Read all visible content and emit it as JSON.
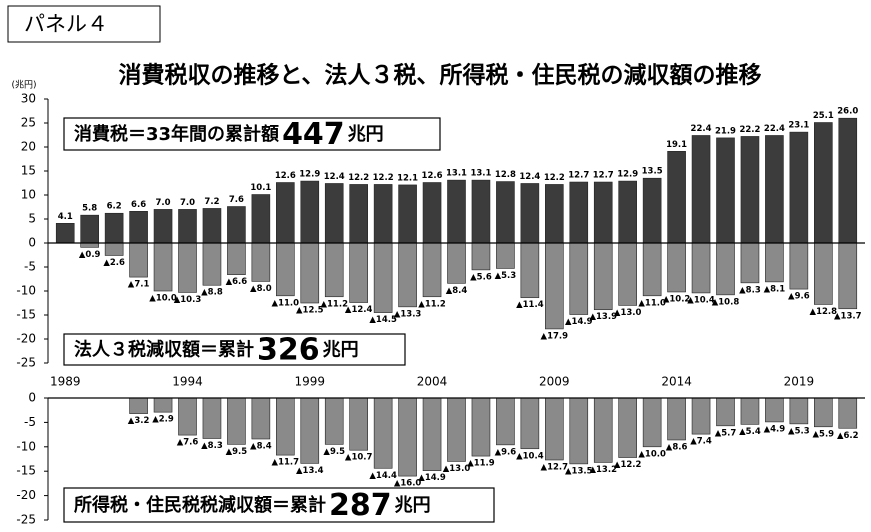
{
  "panel_label": "パネル４",
  "chart_data": [
    {
      "type": "bar",
      "title": "消費税収の推移と、法人３税、所得税・住民税の減収額の推移",
      "y_label": "(兆円)",
      "categories": [
        "1989",
        null,
        null,
        null,
        null,
        "1994",
        null,
        null,
        null,
        null,
        "1999",
        null,
        null,
        null,
        null,
        "2004",
        null,
        null,
        null,
        null,
        "2009",
        null,
        null,
        null,
        null,
        "2014",
        null,
        null,
        null,
        null,
        "2019",
        null,
        null
      ],
      "ylim": [
        -25,
        30
      ],
      "yticks": [
        -25,
        -20,
        -15,
        -10,
        -5,
        0,
        5,
        10,
        15,
        20,
        25,
        30
      ],
      "grid": false,
      "series": [
        {
          "color": "#3c3c3c",
          "values": [
            4.1,
            5.8,
            6.2,
            6.6,
            7.0,
            7.0,
            7.2,
            7.6,
            10.1,
            12.6,
            12.9,
            12.4,
            12.2,
            12.2,
            12.1,
            12.6,
            13.1,
            13.1,
            12.8,
            12.4,
            12.2,
            12.7,
            12.7,
            12.9,
            13.5,
            19.1,
            22.4,
            21.9,
            22.2,
            22.4,
            23.1,
            25.1,
            26.0
          ],
          "value_labels": [
            "4.1",
            "5.8",
            "6.2",
            "6.6",
            "7.0",
            "7.0",
            "7.2",
            "7.6",
            "10.1",
            "12.6",
            "12.9",
            "12.4",
            "12.2",
            "12.2",
            "12.1",
            "12.6",
            "13.1",
            "13.1",
            "12.8",
            "12.4",
            "12.2",
            "12.7",
            "12.7",
            "12.9",
            "13.5",
            "19.1",
            "22.4",
            "21.9",
            "22.2",
            "22.4",
            "23.1",
            "25.1",
            "26.0"
          ]
        },
        {
          "color": "#8a8a8a",
          "values": [
            null,
            -0.9,
            -2.6,
            -7.1,
            -10.0,
            -10.3,
            -8.8,
            -6.6,
            -8.0,
            -11.0,
            -12.5,
            -11.2,
            -12.4,
            -14.5,
            -13.3,
            -11.2,
            -8.4,
            -5.6,
            -5.3,
            -11.4,
            -17.9,
            -14.9,
            -13.9,
            -13.0,
            -11.0,
            -10.2,
            -10.4,
            -10.8,
            -8.3,
            -8.1,
            -9.6,
            -12.8,
            -13.7
          ],
          "value_labels": [
            null,
            "▲0.9",
            "▲2.6",
            "▲7.1",
            "▲10.0",
            "▲10.3",
            "▲8.8",
            "▲6.6",
            "▲8.0",
            "▲11.0",
            "▲12.5",
            "▲11.2",
            "▲12.4",
            "▲14.5",
            "▲13.3",
            "▲11.2",
            "▲8.4",
            "▲5.6",
            "▲5.3",
            "▲11.4",
            "▲17.9",
            "▲14.9",
            "▲13.9",
            "▲13.0",
            "▲11.0",
            "▲10.2",
            "▲10.4",
            "▲10.8",
            "▲8.3",
            "▲8.1",
            "▲9.6",
            "▲12.8",
            "▲13.7"
          ]
        }
      ],
      "annotations": [
        {
          "text": "消費税＝33年間の累計額",
          "value": "447",
          "unit": "兆円"
        },
        {
          "text": "法人３税減収額＝累計",
          "value": "326",
          "unit": "兆円"
        }
      ]
    },
    {
      "type": "bar",
      "ylim": [
        -25,
        0
      ],
      "yticks": [
        -25,
        -20,
        -15,
        -10,
        -5,
        0
      ],
      "grid": false,
      "series": [
        {
          "color": "#8a8a8a",
          "values": [
            null,
            null,
            null,
            -3.2,
            -2.9,
            -7.6,
            -8.3,
            -9.5,
            -8.4,
            -11.7,
            -13.4,
            -9.5,
            -10.7,
            -14.4,
            -16.0,
            -14.9,
            -13.0,
            -11.9,
            -9.6,
            -10.4,
            -12.7,
            -13.5,
            -13.2,
            -12.2,
            -10.0,
            -8.6,
            -7.4,
            -5.7,
            -5.4,
            -4.9,
            -5.3,
            -5.9,
            -6.2
          ],
          "value_labels": [
            null,
            null,
            null,
            "▲3.2",
            "▲2.9",
            "▲7.6",
            "▲8.3",
            "▲9.5",
            "▲8.4",
            "▲11.7",
            "▲13.4",
            "▲9.5",
            "▲10.7",
            "▲14.4",
            "▲16.0",
            "▲14.9",
            "▲13.0",
            "▲11.9",
            "▲9.6",
            "▲10.4",
            "▲12.7",
            "▲13.5",
            "▲13.2",
            "▲12.2",
            "▲10.0",
            "▲8.6",
            "▲7.4",
            "▲5.7",
            "▲5.4",
            "▲4.9",
            "▲5.3",
            "▲5.9",
            "▲6.2"
          ]
        }
      ],
      "annotations": [
        {
          "text": "所得税・住民税税減収額＝累計",
          "value": "287",
          "unit": "兆円"
        }
      ]
    }
  ]
}
